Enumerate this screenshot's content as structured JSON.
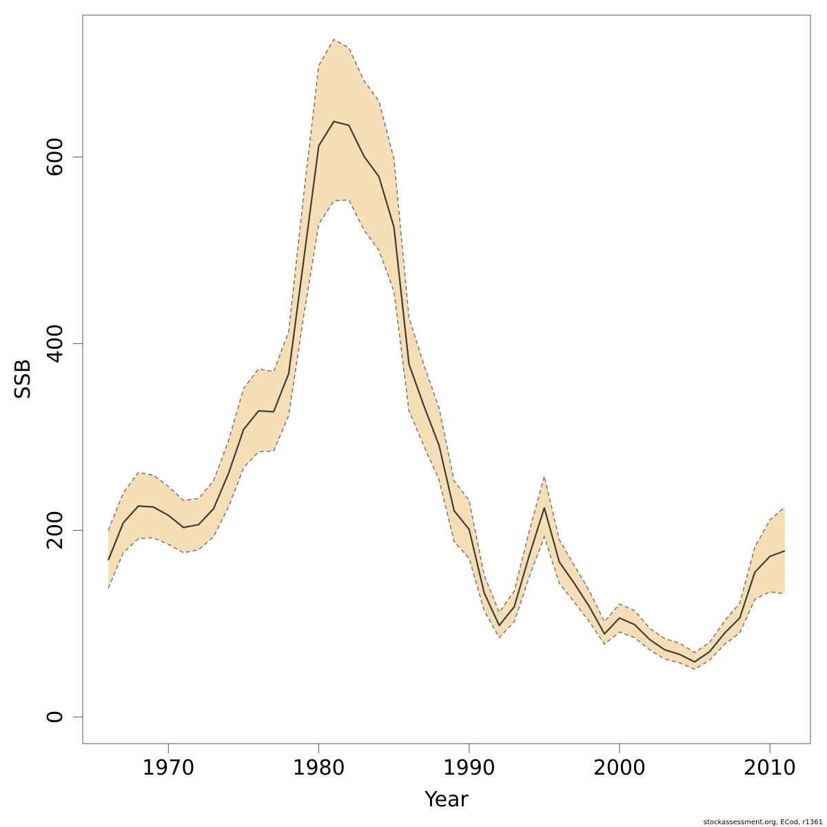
{
  "chart_data": {
    "type": "area",
    "title": "",
    "xlabel": "Year",
    "ylabel": "SSB",
    "xlim": [
      1964.3,
      2012.7
    ],
    "ylim": [
      -28.6,
      752
    ],
    "x_ticks": [
      1970,
      1980,
      1990,
      2000,
      2010
    ],
    "y_ticks": [
      0,
      200,
      400,
      600
    ],
    "grid": false,
    "colors": {
      "band": "#F5DEB3",
      "estimate": "#3a3a3a",
      "bounds": "#7a7a7a",
      "frame": "#555555"
    },
    "x": [
      1966,
      1967,
      1968,
      1969,
      1970,
      1971,
      1972,
      1973,
      1974,
      1975,
      1976,
      1977,
      1978,
      1979,
      1980,
      1981,
      1982,
      1983,
      1984,
      1985,
      1986,
      1987,
      1988,
      1989,
      1990,
      1991,
      1992,
      1993,
      1994,
      1995,
      1996,
      1997,
      1998,
      1999,
      2000,
      2001,
      2002,
      2003,
      2004,
      2005,
      2006,
      2007,
      2008,
      2009,
      2010,
      2011
    ],
    "series": [
      {
        "role": "estimate",
        "values": [
          168,
          208,
          226,
          225,
          216,
          203,
          206,
          223,
          261,
          308,
          328,
          327,
          368,
          490,
          612,
          638,
          634,
          601,
          579,
          525,
          378,
          333,
          291,
          221,
          201,
          133,
          98,
          118,
          173,
          224,
          166,
          143,
          118,
          89,
          106,
          99,
          83,
          72,
          67,
          59,
          70,
          90,
          106,
          155,
          172,
          178
        ]
      },
      {
        "role": "upper",
        "values": [
          200,
          240,
          262,
          259,
          247,
          232,
          234,
          253,
          296,
          352,
          373,
          370,
          413,
          560,
          698,
          726,
          717,
          682,
          660,
          598,
          428,
          377,
          331,
          253,
          232,
          152,
          112,
          135,
          199,
          258,
          190,
          162,
          135,
          102,
          121,
          114,
          95,
          84,
          79,
          69,
          80,
          103,
          122,
          182,
          211,
          225
        ]
      },
      {
        "role": "lower",
        "values": [
          138,
          176,
          191,
          192,
          185,
          176,
          179,
          193,
          225,
          267,
          284,
          285,
          323,
          430,
          528,
          553,
          554,
          522,
          500,
          456,
          328,
          290,
          254,
          188,
          170,
          114,
          85,
          102,
          150,
          193,
          143,
          123,
          102,
          78,
          91,
          85,
          72,
          62,
          58,
          51,
          61,
          78,
          90,
          126,
          134,
          132
        ]
      }
    ]
  },
  "credit": "stockassessment.org, ECod, r1361"
}
